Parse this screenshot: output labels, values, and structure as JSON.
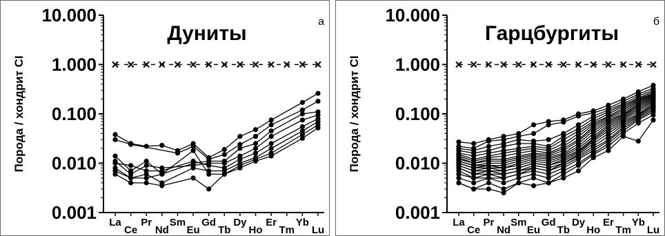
{
  "chart_data": [
    {
      "panel_letter": "а",
      "title": "Дуниты",
      "type": "line",
      "ylabel": "Порода / хондрит CI",
      "yscale": "log",
      "ylim": [
        0.001,
        10
      ],
      "yticks": [
        "10.000",
        "1.000",
        "0.100",
        "0.010",
        "0.001"
      ],
      "ytick_values": [
        10,
        1,
        0.1,
        0.01,
        0.001
      ],
      "categories": [
        "La",
        "Ce",
        "Pr",
        "Nd",
        "Sm",
        "Eu",
        "Gd",
        "Tb",
        "Dy",
        "Ho",
        "Er",
        "Tm",
        "Yb",
        "Lu"
      ],
      "reference_line": {
        "marker": "x",
        "value": 1
      },
      "grid": false,
      "series": [
        {
          "values": [
            0.038,
            0.025,
            0.022,
            0.023,
            0.018,
            0.025,
            0.013,
            0.019,
            0.035,
            0.048,
            0.075,
            null,
            0.17,
            0.26
          ]
        },
        {
          "values": [
            0.03,
            0.024,
            null,
            null,
            0.016,
            0.022,
            0.012,
            0.015,
            0.024,
            0.035,
            0.06,
            null,
            0.12,
            0.18
          ]
        },
        {
          "values": [
            0.014,
            0.007,
            0.011,
            0.006,
            null,
            0.01,
            0.011,
            0.011,
            0.02,
            0.025,
            0.045,
            null,
            0.1,
            0.11
          ]
        },
        {
          "values": [
            0.011,
            0.006,
            0.009,
            0.008,
            null,
            0.009,
            0.01,
            0.01,
            0.014,
            0.02,
            0.035,
            null,
            0.075,
            0.095
          ]
        },
        {
          "values": [
            0.01,
            0.009,
            0.007,
            0.007,
            null,
            0.011,
            0.009,
            0.008,
            0.012,
            0.016,
            0.025,
            null,
            0.055,
            0.08
          ]
        },
        {
          "values": [
            0.008,
            0.005,
            0.006,
            0.004,
            null,
            0.008,
            0.007,
            0.007,
            0.01,
            0.013,
            0.02,
            null,
            0.045,
            0.07
          ]
        },
        {
          "values": [
            0.007,
            0.005,
            0.005,
            0.006,
            null,
            0.018,
            0.006,
            0.006,
            0.009,
            0.012,
            0.016,
            null,
            0.038,
            0.06
          ]
        },
        {
          "values": [
            0.006,
            0.004,
            0.004,
            0.0035,
            null,
            0.005,
            0.003,
            0.006,
            0.008,
            0.011,
            0.014,
            null,
            0.032,
            0.052
          ]
        }
      ]
    },
    {
      "panel_letter": "б",
      "title": "Гарцбургиты",
      "type": "line",
      "ylabel": "Порода / хондрит CI",
      "yscale": "log",
      "ylim": [
        0.001,
        10
      ],
      "yticks": [
        "10.000",
        "1.000",
        "0.100",
        "0.010",
        "0.001"
      ],
      "ytick_values": [
        10,
        1,
        0.1,
        0.01,
        0.001
      ],
      "categories": [
        "La",
        "Ce",
        "Pr",
        "Nd",
        "Sm",
        "Eu",
        "Gd",
        "Tb",
        "Dy",
        "Ho",
        "Er",
        "Tm",
        "Yb",
        "Lu"
      ],
      "reference_line": {
        "marker": "x",
        "value": 1
      },
      "grid": false,
      "series": [
        {
          "values": [
            0.027,
            0.025,
            0.03,
            0.035,
            0.04,
            0.06,
            0.07,
            0.075,
            0.1,
            0.115,
            0.15,
            0.2,
            0.28,
            0.38
          ]
        },
        {
          "values": [
            0.022,
            0.02,
            0.028,
            0.03,
            0.035,
            0.04,
            0.06,
            0.068,
            0.09,
            0.105,
            0.13,
            0.18,
            0.25,
            0.33
          ]
        },
        {
          "values": [
            0.02,
            0.018,
            0.022,
            0.025,
            0.03,
            0.028,
            0.03,
            0.04,
            0.06,
            0.09,
            0.12,
            0.16,
            0.23,
            0.3
          ]
        },
        {
          "values": [
            0.018,
            0.016,
            0.018,
            0.022,
            0.025,
            0.025,
            0.022,
            0.035,
            0.05,
            0.08,
            0.11,
            0.15,
            0.21,
            0.28
          ]
        },
        {
          "values": [
            0.016,
            0.014,
            0.016,
            0.018,
            0.02,
            0.022,
            0.02,
            0.03,
            0.045,
            0.07,
            0.1,
            0.14,
            0.2,
            0.26
          ]
        },
        {
          "values": [
            0.015,
            0.012,
            0.014,
            0.016,
            0.018,
            0.02,
            0.018,
            0.025,
            0.04,
            0.065,
            0.09,
            0.13,
            0.19,
            0.25
          ]
        },
        {
          "values": [
            0.014,
            0.011,
            0.013,
            0.014,
            0.016,
            0.018,
            0.016,
            0.022,
            0.035,
            0.06,
            0.085,
            0.12,
            0.18,
            0.24
          ]
        },
        {
          "values": [
            0.013,
            0.01,
            0.012,
            0.012,
            0.014,
            0.016,
            0.015,
            0.02,
            0.03,
            0.055,
            0.08,
            0.11,
            0.17,
            0.23
          ]
        },
        {
          "values": [
            0.012,
            0.01,
            0.011,
            0.011,
            0.013,
            0.015,
            0.014,
            0.018,
            0.028,
            0.05,
            0.075,
            0.1,
            0.16,
            0.22
          ]
        },
        {
          "values": [
            0.011,
            0.009,
            0.01,
            0.01,
            0.012,
            0.014,
            0.013,
            0.016,
            0.025,
            0.045,
            0.07,
            0.095,
            0.15,
            0.21
          ]
        },
        {
          "values": [
            0.011,
            0.009,
            0.009,
            0.009,
            0.011,
            0.013,
            0.012,
            0.015,
            0.022,
            0.04,
            0.065,
            0.09,
            0.14,
            0.2
          ]
        },
        {
          "values": [
            0.01,
            0.008,
            0.009,
            0.008,
            0.01,
            0.012,
            0.011,
            0.014,
            0.02,
            0.035,
            0.06,
            0.085,
            0.13,
            0.19
          ]
        },
        {
          "values": [
            0.01,
            0.008,
            0.008,
            0.008,
            0.009,
            0.011,
            0.01,
            0.013,
            0.018,
            0.032,
            0.055,
            0.08,
            0.12,
            0.18
          ]
        },
        {
          "values": [
            0.009,
            0.007,
            0.008,
            0.007,
            0.008,
            0.01,
            0.009,
            0.012,
            0.017,
            0.03,
            0.05,
            0.075,
            0.11,
            0.17
          ]
        },
        {
          "values": [
            0.009,
            0.007,
            0.007,
            0.007,
            0.008,
            0.01,
            0.009,
            0.011,
            0.016,
            0.028,
            0.045,
            0.07,
            0.1,
            0.16
          ]
        },
        {
          "values": [
            0.008,
            0.006,
            0.007,
            0.006,
            0.007,
            0.009,
            0.008,
            0.01,
            0.015,
            0.025,
            0.04,
            0.065,
            0.095,
            0.15
          ]
        },
        {
          "values": [
            0.008,
            0.006,
            0.006,
            0.006,
            0.007,
            0.008,
            0.007,
            0.01,
            0.014,
            0.022,
            0.035,
            0.06,
            0.09,
            0.14
          ]
        },
        {
          "values": [
            0.007,
            0.005,
            0.006,
            0.005,
            0.006,
            0.008,
            0.007,
            0.009,
            0.013,
            0.02,
            0.03,
            0.055,
            0.085,
            0.13
          ]
        },
        {
          "values": [
            0.006,
            0.005,
            0.005,
            0.005,
            0.006,
            0.007,
            0.006,
            0.008,
            0.012,
            0.018,
            0.028,
            0.05,
            0.08,
            0.12
          ]
        },
        {
          "values": [
            0.005,
            0.004,
            0.005,
            0.004,
            0.005,
            0.006,
            0.005,
            0.007,
            0.01,
            0.016,
            0.025,
            0.045,
            0.075,
            0.11
          ]
        },
        {
          "values": [
            0.004,
            0.003,
            0.004,
            0.003,
            0.004,
            0.005,
            0.004,
            0.006,
            0.009,
            0.015,
            0.022,
            0.04,
            0.065,
            0.095
          ]
        },
        {
          "values": [
            0.004,
            0.003,
            0.003,
            0.0025,
            0.004,
            0.0035,
            0.004,
            0.005,
            0.007,
            0.013,
            0.018,
            0.035,
            0.028,
            0.075
          ]
        }
      ]
    }
  ]
}
